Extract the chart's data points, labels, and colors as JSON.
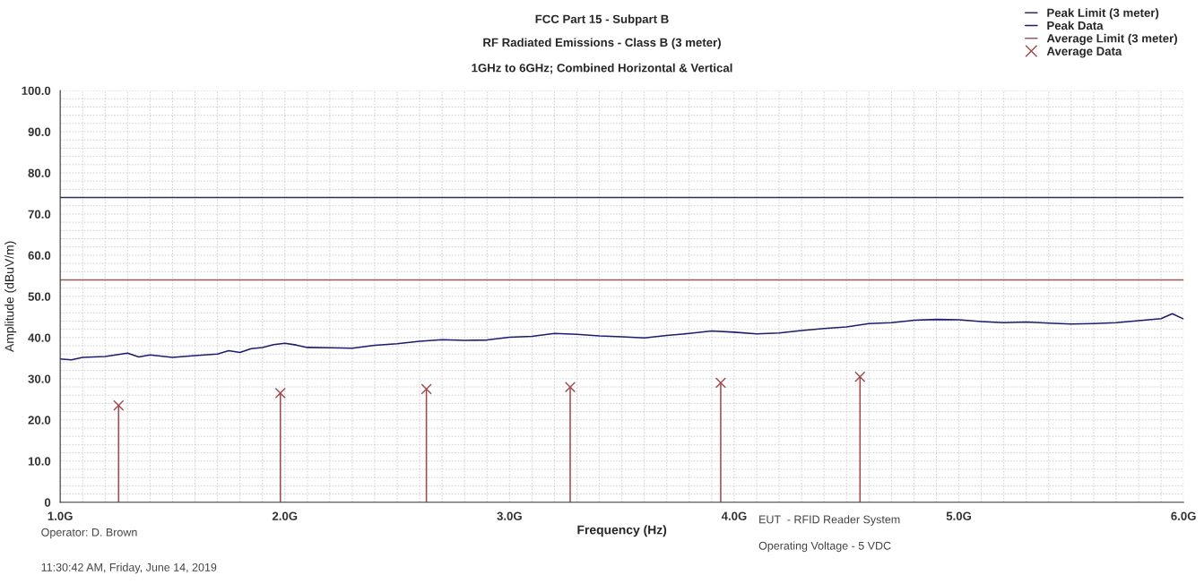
{
  "chart_data": {
    "type": "line",
    "title": "FCC Part 15 - Subpart B",
    "subtitle": "RF Radiated Emissions - Class B (3 meter)\n\n1GHz to 6GHz; Combined Horizontal & Vertical",
    "xlabel": "Frequency (Hz)",
    "ylabel": "Amplitude (dBuV/m)",
    "xlim": [
      1,
      6
    ],
    "ylim": [
      0,
      100
    ],
    "xticks": [
      {
        "value": 1,
        "label": "1.0G"
      },
      {
        "value": 2,
        "label": "2.0G"
      },
      {
        "value": 3,
        "label": "3.0G"
      },
      {
        "value": 4,
        "label": "4.0G"
      },
      {
        "value": 5,
        "label": "5.0G"
      },
      {
        "value": 6,
        "label": "6.0G"
      }
    ],
    "yticks": [
      0,
      {
        "value": 10,
        "label": "10.0"
      },
      {
        "value": 20,
        "label": "20.0"
      },
      {
        "value": 30,
        "label": "30.0"
      },
      {
        "value": 40,
        "label": "40.0"
      },
      {
        "value": 50,
        "label": "50.0"
      },
      {
        "value": 60,
        "label": "60.0"
      },
      {
        "value": 70,
        "label": "70.0"
      },
      {
        "value": 80,
        "label": "80.0"
      },
      {
        "value": 90,
        "label": "90.0"
      },
      {
        "value": 100,
        "label": "100.0"
      }
    ],
    "grid": true,
    "legend": "top right",
    "series": [
      {
        "name": "Peak Limit (3 meter)",
        "color": "#2b3060",
        "x": [
          1,
          6
        ],
        "values": [
          74,
          74
        ]
      },
      {
        "name": "Peak Data",
        "color": "#1c1c70",
        "x": [
          1,
          1.05,
          1.1,
          1.2,
          1.3,
          1.35,
          1.4,
          1.5,
          1.6,
          1.7,
          1.75,
          1.8,
          1.85,
          1.9,
          1.95,
          2.0,
          2.05,
          2.1,
          2.2,
          2.3,
          2.4,
          2.5,
          2.6,
          2.7,
          2.8,
          2.9,
          3.0,
          3.1,
          3.2,
          3.3,
          3.4,
          3.5,
          3.6,
          3.7,
          3.8,
          3.9,
          4.0,
          4.1,
          4.2,
          4.3,
          4.4,
          4.5,
          4.6,
          4.7,
          4.8,
          4.9,
          5.0,
          5.1,
          5.2,
          5.3,
          5.4,
          5.5,
          5.6,
          5.7,
          5.8,
          5.9,
          5.95,
          6.0
        ],
        "values": [
          34.8,
          34.6,
          35.2,
          35.4,
          36.2,
          35.3,
          35.8,
          35.2,
          35.6,
          36.0,
          36.8,
          36.4,
          37.3,
          37.6,
          38.3,
          38.6,
          38.2,
          37.6,
          37.5,
          37.4,
          38.1,
          38.5,
          39.1,
          39.5,
          39.3,
          39.4,
          40.1,
          40.3,
          41.0,
          40.8,
          40.4,
          40.2,
          39.9,
          40.5,
          41.0,
          41.6,
          41.3,
          40.9,
          41.1,
          41.7,
          42.2,
          42.6,
          43.4,
          43.6,
          44.2,
          44.4,
          44.3,
          43.9,
          43.6,
          43.8,
          43.5,
          43.3,
          43.4,
          43.6,
          44.1,
          44.6,
          45.8,
          44.5
        ]
      },
      {
        "name": "Average Limit (3 meter)",
        "color": "#9a5a5a",
        "x": [
          1,
          6
        ],
        "values": [
          54,
          54
        ]
      },
      {
        "name": "Average Data",
        "type": "lollipop",
        "marker": "cross",
        "color": "#a04848",
        "x": [
          1.26,
          1.98,
          2.63,
          3.27,
          3.94,
          4.56
        ],
        "values": [
          23.5,
          26.5,
          27.5,
          28,
          29,
          30.5
        ]
      }
    ],
    "annotations": [
      "Operator: D. Brown",
      "11:30:42 AM, Friday, June 14, 2019",
      "EUT  - RFID Reader System",
      "Operating Voltage - 5 VDC"
    ]
  }
}
